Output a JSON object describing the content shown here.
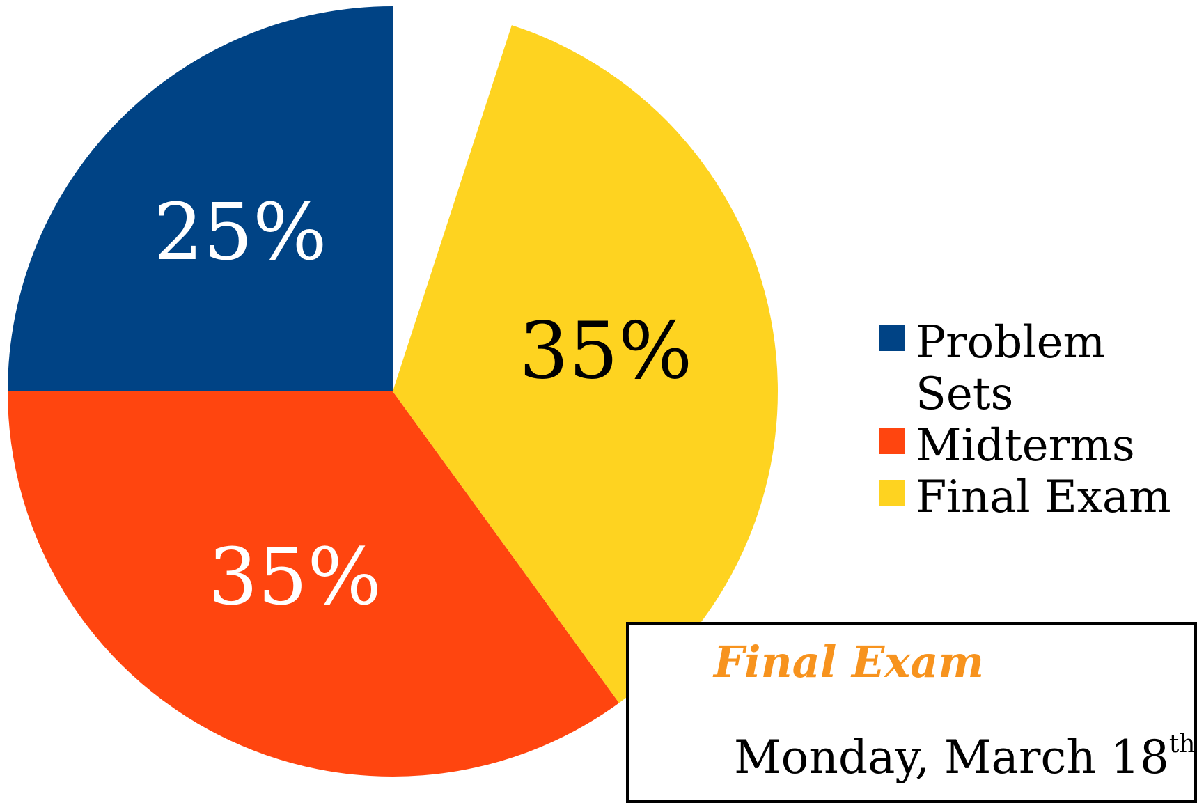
{
  "chart_data": {
    "type": "pie",
    "categories": [
      "Problem Sets",
      "Midterms",
      "Final Exam"
    ],
    "values": [
      25,
      35,
      35
    ],
    "value_labels": [
      "25%",
      "35%",
      "35%"
    ],
    "colors": [
      "#004385",
      "#ff450f",
      "#fed320"
    ],
    "label_colors": [
      "#ffffff",
      "#ffffff",
      "#000000"
    ]
  },
  "note_box": {
    "title": "Final Exam",
    "date": "Monday, March 18",
    "date_suffix": "th"
  }
}
